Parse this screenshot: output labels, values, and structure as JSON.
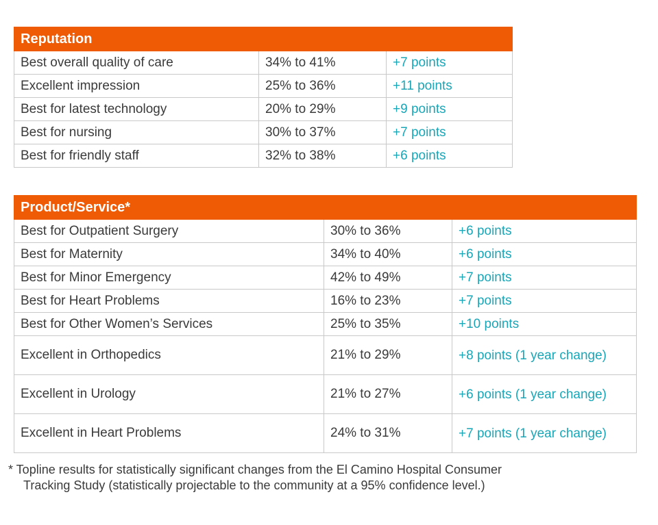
{
  "reputation": {
    "header": "Reputation",
    "rows": [
      {
        "label": "Best overall quality of care",
        "range": "34% to 41%",
        "change": "+7 points"
      },
      {
        "label": "Excellent impression",
        "range": "25% to 36%",
        "change": "+11 points"
      },
      {
        "label": "Best for latest technology",
        "range": "20% to 29%",
        "change": "+9 points"
      },
      {
        "label": "Best for nursing",
        "range": "30% to 37%",
        "change": "+7 points"
      },
      {
        "label": "Best for friendly staff",
        "range": "32% to 38%",
        "change": "+6 points"
      }
    ]
  },
  "product_service": {
    "header": "Product/Service*",
    "rows": [
      {
        "label": "Best for Outpatient Surgery",
        "range": "30% to 36%",
        "change": "+6 points"
      },
      {
        "label": "Best for Maternity",
        "range": "34% to 40%",
        "change": "+6 points"
      },
      {
        "label": "Best for Minor Emergency",
        "range": "42% to 49%",
        "change": "+7 points"
      },
      {
        "label": "Best for Heart Problems",
        "range": "16% to 23%",
        "change": "+7 points"
      },
      {
        "label": "Best for Other Women’s Services",
        "range": "25% to 35%",
        "change": "+10 points"
      },
      {
        "label": "Excellent in Orthopedics",
        "range": "21% to 29%",
        "change": "+8 points (1 year change)"
      },
      {
        "label": "Excellent in Urology",
        "range": "21% to 27%",
        "change": "+6 points (1 year change)"
      },
      {
        "label": "Excellent in Heart Problems",
        "range": "24% to 31%",
        "change": "+7 points (1 year change)"
      }
    ]
  },
  "footnote": {
    "line1": "* Topline results for statistically significant changes from the El Camino Hospital Consumer",
    "line2": "Tracking Study (statistically projectable to the community at a 95% confidence level.)"
  },
  "colors": {
    "header_bg": "#ef5a05",
    "change_text": "#1aa6b7"
  }
}
